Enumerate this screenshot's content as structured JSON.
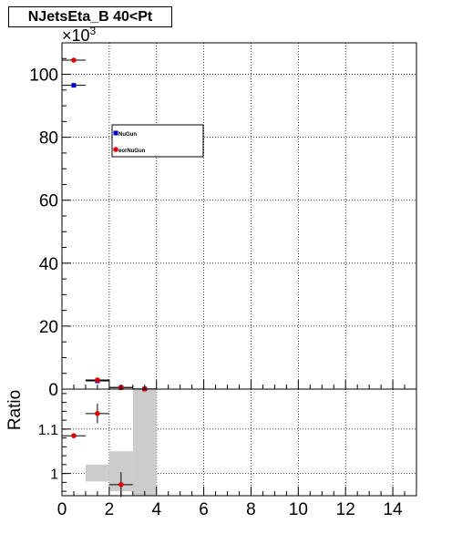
{
  "chart_data": [
    {
      "type": "scatter",
      "title": "NJetsEta_B 40<Pt",
      "exponent_label": "×10",
      "exponent_power": "3",
      "xlim": [
        0,
        15
      ],
      "ylim": [
        0,
        110
      ],
      "y_ticks": [
        0,
        20,
        40,
        60,
        80,
        100
      ],
      "grid": true,
      "legend": "upper-left, inside plot",
      "series": [
        {
          "name": "NuGun",
          "color": "#0000cc",
          "marker": "square",
          "points": [
            {
              "x": 0.5,
              "y": 96.5
            },
            {
              "x": 1.5,
              "y": 2.6
            },
            {
              "x": 2.5,
              "y": 0.5
            },
            {
              "x": 3.5,
              "y": 0.05
            }
          ]
        },
        {
          "name": "eorNuGun",
          "color": "#dd0000",
          "marker": "circle",
          "points": [
            {
              "x": 0.5,
              "y": 104.5
            },
            {
              "x": 1.5,
              "y": 2.9
            },
            {
              "x": 2.5,
              "y": 0.5
            },
            {
              "x": 3.5,
              "y": 0.04
            }
          ]
        }
      ]
    },
    {
      "type": "scatter",
      "ylabel": "Ratio",
      "xlim": [
        0,
        15
      ],
      "ylim": [
        0.95,
        1.19
      ],
      "x_ticks": [
        0,
        2,
        4,
        6,
        8,
        10,
        12,
        14
      ],
      "y_ticks": [
        1,
        1.1
      ],
      "grid": true,
      "uncertainty_band": [
        {
          "x0": 1,
          "x1": 2,
          "y0": 0.982,
          "y1": 1.02
        },
        {
          "x0": 2,
          "x1": 3,
          "y0": 0.96,
          "y1": 1.05
        },
        {
          "x0": 3,
          "x1": 4,
          "y0": 0.93,
          "y1": 1.2
        }
      ],
      "series": [
        {
          "name": "",
          "color": "#dd0000",
          "marker": "circle",
          "points": [
            {
              "x": 0.5,
              "y": 1.085,
              "xerr": 0.5,
              "yerr": 0.002
            },
            {
              "x": 1.5,
              "y": 1.135,
              "xerr": 0.5,
              "yerr": 0.022
            },
            {
              "x": 2.5,
              "y": 0.975,
              "xerr": 0.5,
              "yerr": 0.028
            }
          ]
        }
      ]
    }
  ]
}
